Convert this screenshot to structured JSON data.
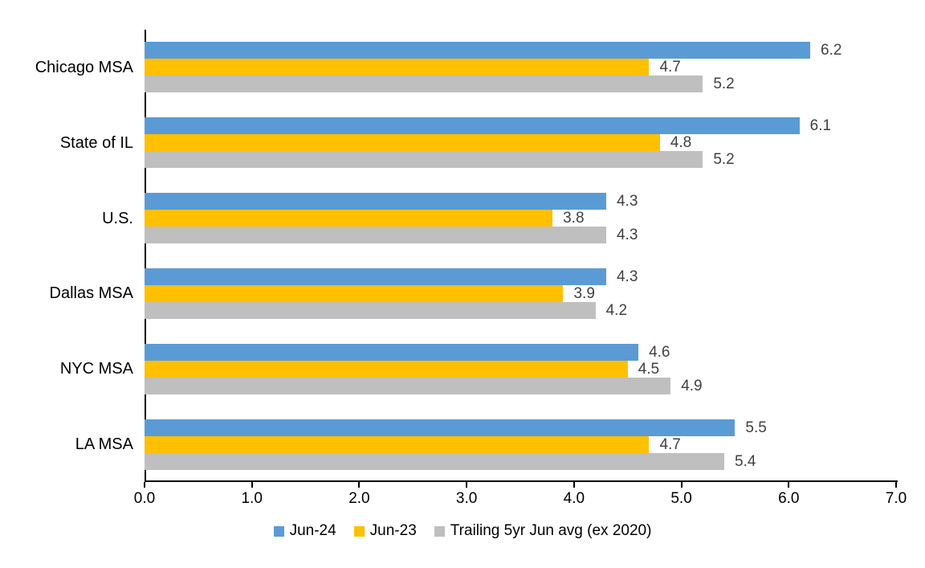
{
  "chart_data": {
    "type": "bar",
    "orientation": "horizontal",
    "title": "",
    "xlabel": "",
    "ylabel": "",
    "categories": [
      "Chicago MSA",
      "State of IL",
      "U.S.",
      "Dallas MSA",
      "NYC MSA",
      "LA MSA"
    ],
    "series": [
      {
        "name": "Jun-24",
        "color": "#5B9BD5",
        "values": [
          6.2,
          6.1,
          4.3,
          4.3,
          4.6,
          5.5
        ]
      },
      {
        "name": "Jun-23",
        "color": "#FFC000",
        "values": [
          4.7,
          4.8,
          3.8,
          3.9,
          4.5,
          4.7
        ]
      },
      {
        "name": "Trailing 5yr Jun avg (ex 2020)",
        "color": "#BFBFBF",
        "values": [
          5.2,
          5.2,
          4.3,
          4.2,
          4.9,
          5.4
        ]
      }
    ],
    "xlim": [
      0.0,
      7.0
    ],
    "x_ticks": [
      "0.0",
      "1.0",
      "2.0",
      "3.0",
      "4.0",
      "5.0",
      "6.0",
      "7.0"
    ],
    "grid": false,
    "data_labels": true,
    "data_label_color": "#404040",
    "axis_color": "#000000",
    "legend_position": "bottom"
  }
}
